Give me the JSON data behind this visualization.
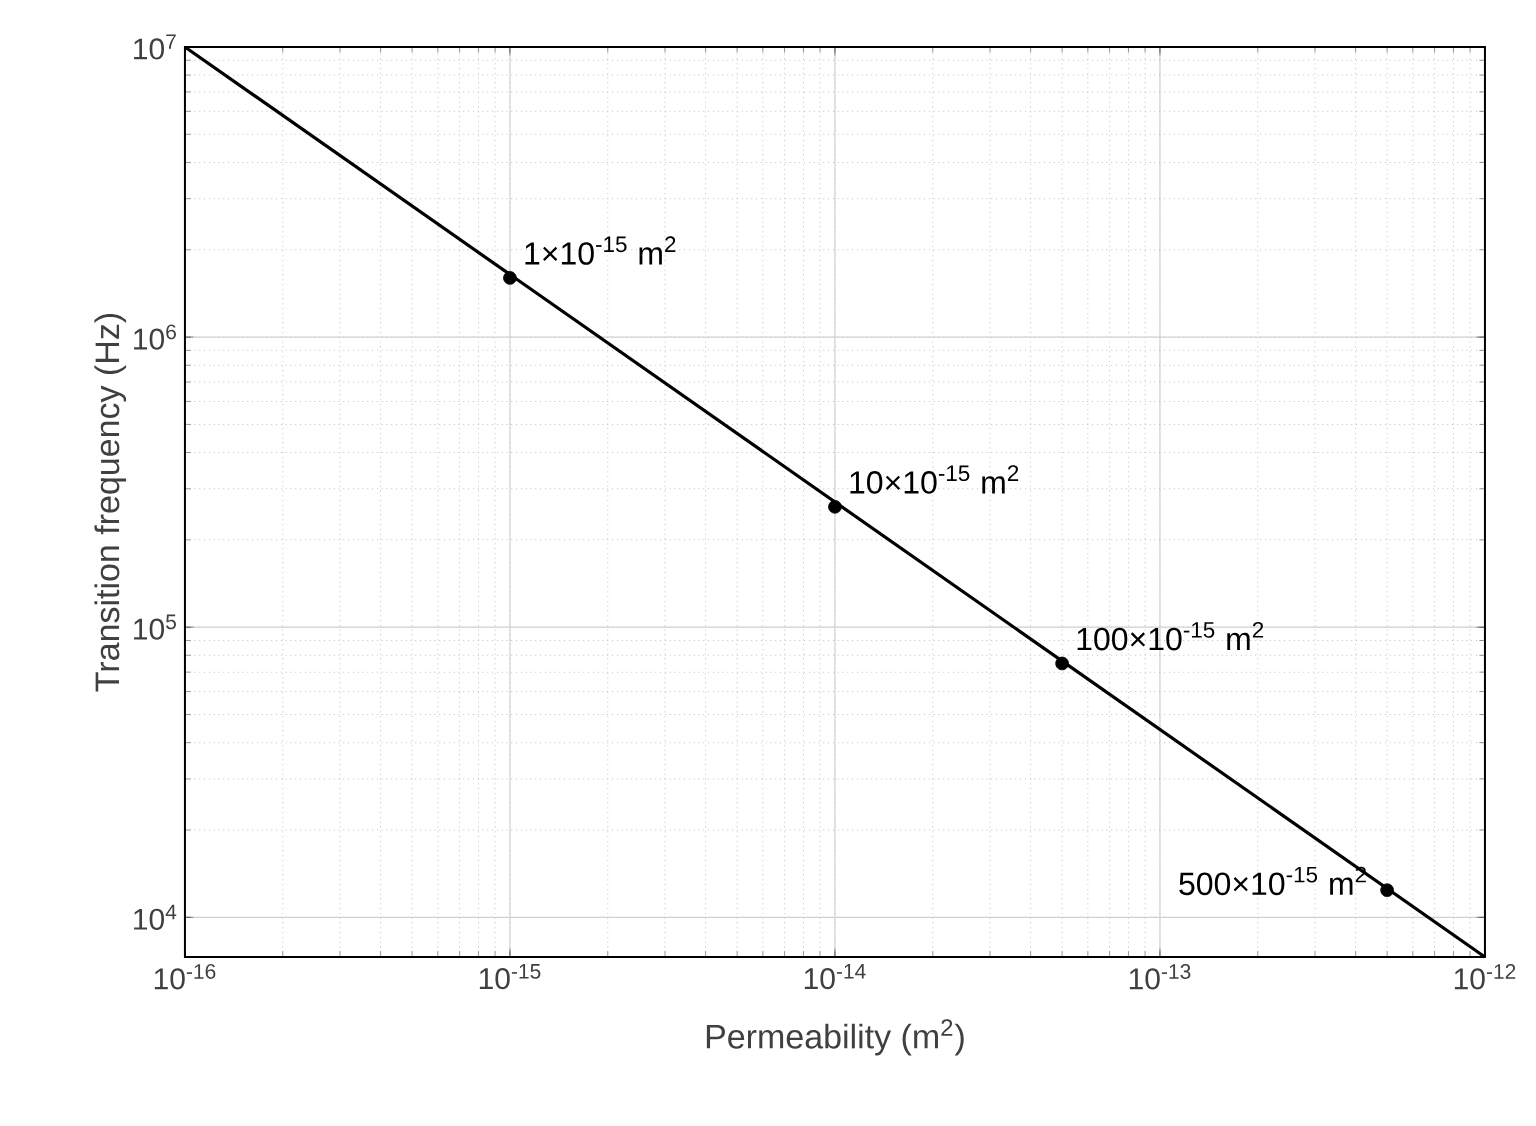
{
  "chart_data": {
    "type": "line",
    "xlabel": "Permeability (m$^{2}$)",
    "ylabel": "Transition frequency (Hz)",
    "log": "xy",
    "grid": true,
    "xlim": [
      1e-16,
      1e-12
    ],
    "ylim": [
      7300,
      10000000.0
    ],
    "xticks": [
      {
        "value": 1e-16,
        "label": "10$^{-16}$"
      },
      {
        "value": 1e-15,
        "label": "10$^{-15}$"
      },
      {
        "value": 1e-14,
        "label": "10$^{-14}$"
      },
      {
        "value": 1e-13,
        "label": "10$^{-13}$"
      },
      {
        "value": 1e-12,
        "label": "10$^{-12}$"
      }
    ],
    "yticks": [
      {
        "value": 10000.0,
        "label": "10$^{4}$"
      },
      {
        "value": 100000.0,
        "label": "10$^{5}$"
      },
      {
        "value": 1000000.0,
        "label": "10$^{6}$"
      },
      {
        "value": 10000000.0,
        "label": "10$^{7}$"
      }
    ],
    "series": [
      {
        "color": "#000000",
        "marker": "none",
        "x": [
          1e-16,
          1e-12
        ],
        "values": [
          10000000.0,
          7300
        ]
      },
      {
        "type": "scatter",
        "color": "#000000",
        "marker": "circle",
        "x": [
          1e-15,
          1e-14,
          5e-14,
          5e-13
        ],
        "values": [
          1600000.0,
          260000.0,
          75000.0,
          12400.0
        ]
      }
    ],
    "annotations": [
      {
        "text": "1×10$^{-15}$ m$^{2}$",
        "x": 1e-15,
        "y": 1600000.0
      },
      {
        "text": "10×10$^{-15}$ m$^{2}$",
        "x": 1e-14,
        "y": 260000.0
      },
      {
        "text": "100×10$^{-15}$ m$^{2}$",
        "x": 5e-14,
        "y": 75000.0
      },
      {
        "text": "500×10$^{-15}$ m$^{2}$",
        "x": 5e-13,
        "y": 12400.0
      }
    ]
  }
}
